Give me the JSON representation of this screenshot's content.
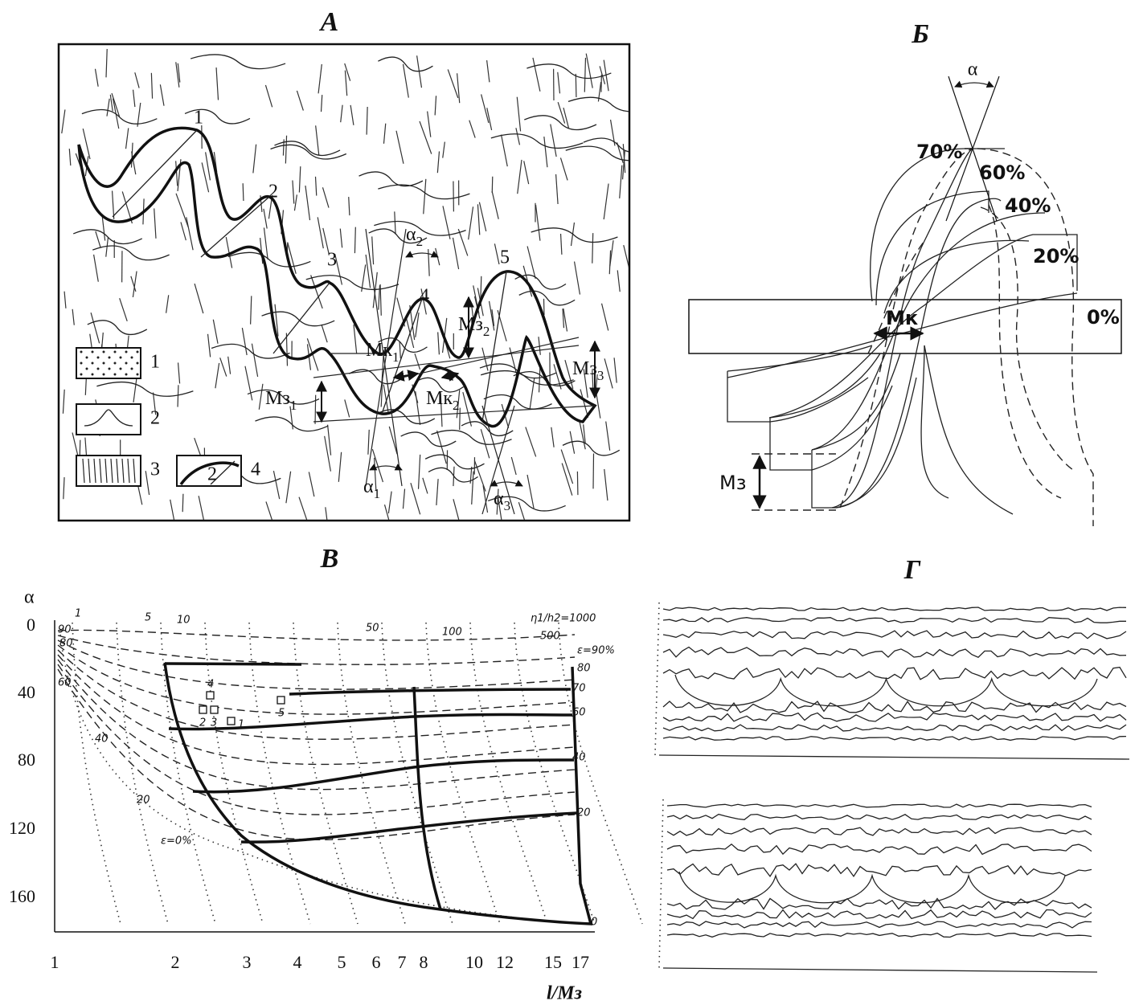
{
  "panel_a": {
    "title": "А",
    "fold_numbers": [
      "1",
      "2",
      "3",
      "4",
      "5"
    ],
    "annotations": [
      {
        "base": "α",
        "sub": "2"
      },
      {
        "base": "Мк",
        "sub": "1"
      },
      {
        "base": "Мз",
        "sub": "2"
      },
      {
        "base": "Мз",
        "sub": "1"
      },
      {
        "base": "Мк",
        "sub": "2"
      },
      {
        "base": "Мз",
        "sub": "3"
      },
      {
        "base": "α",
        "sub": "1"
      },
      {
        "base": "α",
        "sub": "3"
      }
    ],
    "legend": [
      "1",
      "2",
      "3",
      "4"
    ],
    "legend_inset": "2"
  },
  "panel_b": {
    "title": "Б",
    "alpha": "α",
    "percent_labels": [
      "70%",
      "60%",
      "40%",
      "20%",
      "0%"
    ],
    "mk": "Мк",
    "mz": "Мз"
  },
  "panel_v": {
    "title": "В",
    "y_label": "α",
    "y_ticks": [
      "0",
      "40",
      "80",
      "120",
      "160"
    ],
    "x_ticks": [
      "1",
      "2",
      "3",
      "4",
      "5",
      "6",
      "7",
      "8",
      "10",
      "12",
      "15",
      "17"
    ],
    "x_label": "l/Мз",
    "top_labels": [
      "1",
      "5",
      "10",
      "50",
      "100",
      "500",
      "η1/h2=1000"
    ],
    "right_labels": [
      "ε=90%",
      "80",
      "70",
      "60",
      "40",
      "20",
      "0"
    ],
    "left_labels": [
      "90",
      "80",
      "60",
      "40",
      "20",
      "ε=0%"
    ],
    "point_labels": [
      "4",
      "2",
      "3",
      "1",
      "5"
    ]
  },
  "panel_g": {
    "title": "Г"
  }
}
